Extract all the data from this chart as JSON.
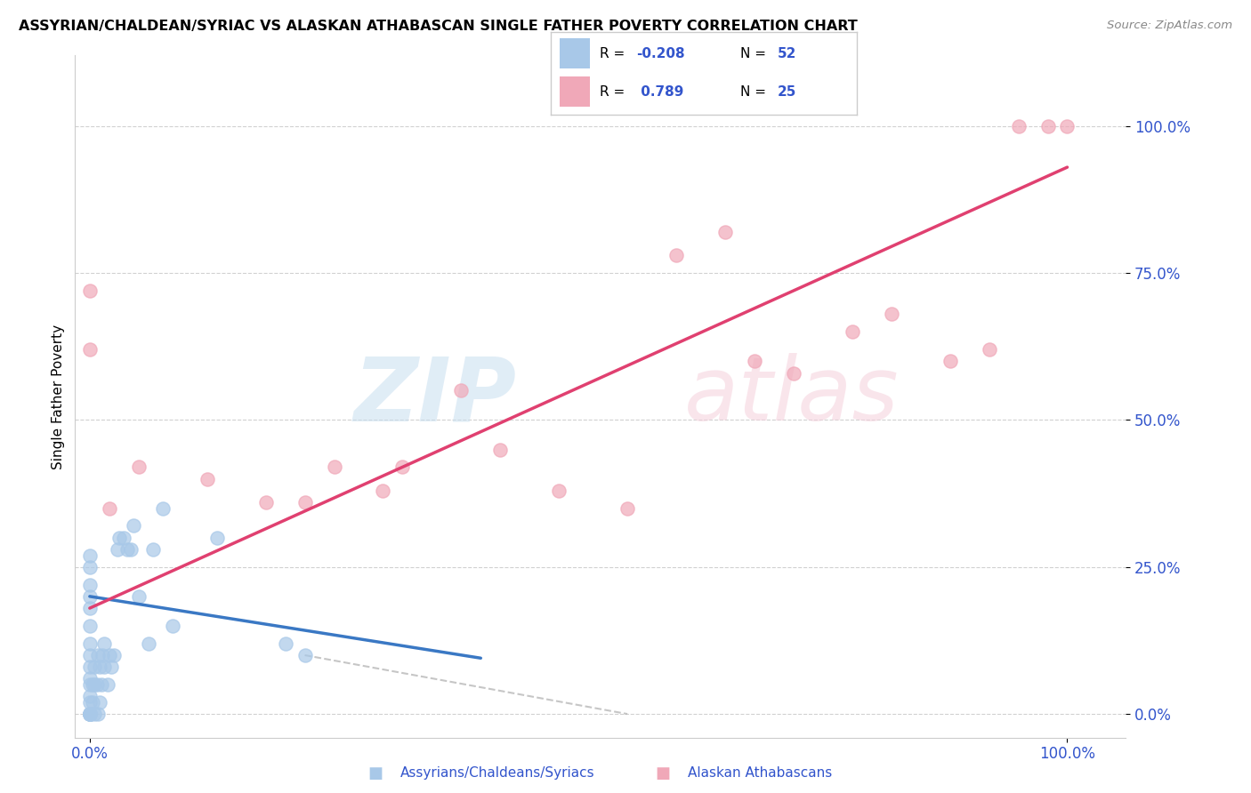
{
  "title": "ASSYRIAN/CHALDEAN/SYRIAC VS ALASKAN ATHABASCAN SINGLE FATHER POVERTY CORRELATION CHART",
  "source": "Source: ZipAtlas.com",
  "ylabel": "Single Father Poverty",
  "ytick_labels": [
    "0.0%",
    "25.0%",
    "50.0%",
    "75.0%",
    "100.0%"
  ],
  "ytick_values": [
    0.0,
    0.25,
    0.5,
    0.75,
    1.0
  ],
  "xtick_labels": [
    "0.0%",
    "100.0%"
  ],
  "xtick_values": [
    0.0,
    1.0
  ],
  "legend_label1": "Assyrians/Chaldeans/Syriacs",
  "legend_label2": "Alaskan Athabascans",
  "color_blue": "#a8c8e8",
  "color_pink": "#f0a8b8",
  "color_blue_line": "#3a78c4",
  "color_pink_line": "#e04070",
  "color_dashed": "#b8b8b8",
  "blue_scatter_x": [
    0.0,
    0.0,
    0.0,
    0.0,
    0.0,
    0.0,
    0.0,
    0.0,
    0.0,
    0.0,
    0.0,
    0.0,
    0.0,
    0.0,
    0.0,
    0.0,
    0.0,
    0.0,
    0.0,
    0.0,
    0.003,
    0.003,
    0.005,
    0.005,
    0.005,
    0.007,
    0.008,
    0.008,
    0.01,
    0.01,
    0.012,
    0.013,
    0.015,
    0.015,
    0.018,
    0.02,
    0.022,
    0.025,
    0.028,
    0.03,
    0.035,
    0.038,
    0.042,
    0.045,
    0.05,
    0.06,
    0.065,
    0.075,
    0.085,
    0.13,
    0.2,
    0.22
  ],
  "blue_scatter_y": [
    0.0,
    0.0,
    0.0,
    0.0,
    0.0,
    0.0,
    0.0,
    0.02,
    0.03,
    0.05,
    0.06,
    0.08,
    0.1,
    0.12,
    0.15,
    0.18,
    0.2,
    0.22,
    0.25,
    0.27,
    0.02,
    0.05,
    0.0,
    0.05,
    0.08,
    0.05,
    0.0,
    0.1,
    0.02,
    0.08,
    0.05,
    0.1,
    0.08,
    0.12,
    0.05,
    0.1,
    0.08,
    0.1,
    0.28,
    0.3,
    0.3,
    0.28,
    0.28,
    0.32,
    0.2,
    0.12,
    0.28,
    0.35,
    0.15,
    0.3,
    0.12,
    0.1
  ],
  "pink_scatter_x": [
    0.0,
    0.0,
    0.02,
    0.05,
    0.12,
    0.18,
    0.22,
    0.25,
    0.3,
    0.32,
    0.38,
    0.42,
    0.48,
    0.55,
    0.6,
    0.65,
    0.68,
    0.72,
    0.78,
    0.82,
    0.88,
    0.92,
    0.95,
    0.98,
    1.0
  ],
  "pink_scatter_y": [
    0.62,
    0.72,
    0.35,
    0.42,
    0.4,
    0.36,
    0.36,
    0.42,
    0.38,
    0.42,
    0.55,
    0.45,
    0.38,
    0.35,
    0.78,
    0.82,
    0.6,
    0.58,
    0.65,
    0.68,
    0.6,
    0.62,
    1.0,
    1.0,
    1.0
  ],
  "blue_line_x": [
    0.0,
    0.4
  ],
  "blue_line_y": [
    0.2,
    0.095
  ],
  "pink_line_x": [
    0.0,
    1.0
  ],
  "pink_line_y": [
    0.18,
    0.93
  ],
  "dashed_line_x": [
    0.22,
    0.55
  ],
  "dashed_line_y": [
    0.1,
    0.0
  ],
  "xlim": [
    -0.015,
    1.06
  ],
  "ylim": [
    -0.04,
    1.12
  ]
}
